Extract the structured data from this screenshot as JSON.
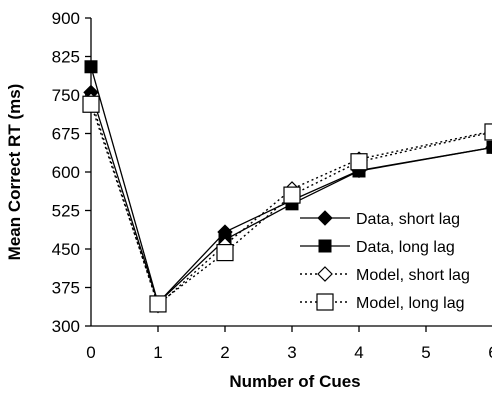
{
  "chart_data": {
    "type": "line",
    "xlabel": "Number of Cues",
    "ylabel": "Mean Correct RT (ms)",
    "x_ticks": [
      0,
      1,
      2,
      3,
      4,
      5,
      6
    ],
    "ylim": [
      300,
      900
    ],
    "y_ticks": [
      300,
      375,
      450,
      525,
      600,
      675,
      750,
      825,
      900
    ],
    "grid": false,
    "legend_position": "lower-right",
    "series": [
      {
        "name": "Data, short lag",
        "marker": "filled-diamond",
        "line": "solid",
        "x": [
          0,
          1,
          2,
          3,
          4,
          6
        ],
        "values": [
          755,
          345,
          483,
          545,
          603,
          648
        ]
      },
      {
        "name": "Data, long lag",
        "marker": "filled-square",
        "line": "solid",
        "x": [
          0,
          1,
          2,
          3,
          4,
          6
        ],
        "values": [
          805,
          345,
          468,
          538,
          602,
          648
        ]
      },
      {
        "name": "Model, short lag",
        "marker": "open-diamond",
        "line": "dotted",
        "x": [
          0,
          1,
          2,
          3,
          4,
          6
        ],
        "values": [
          740,
          340,
          458,
          567,
          625,
          680
        ]
      },
      {
        "name": "Model, long lag",
        "marker": "open-square",
        "line": "dotted",
        "x": [
          0,
          1,
          2,
          3,
          4,
          6
        ],
        "values": [
          732,
          343,
          443,
          555,
          620,
          678
        ]
      }
    ]
  }
}
